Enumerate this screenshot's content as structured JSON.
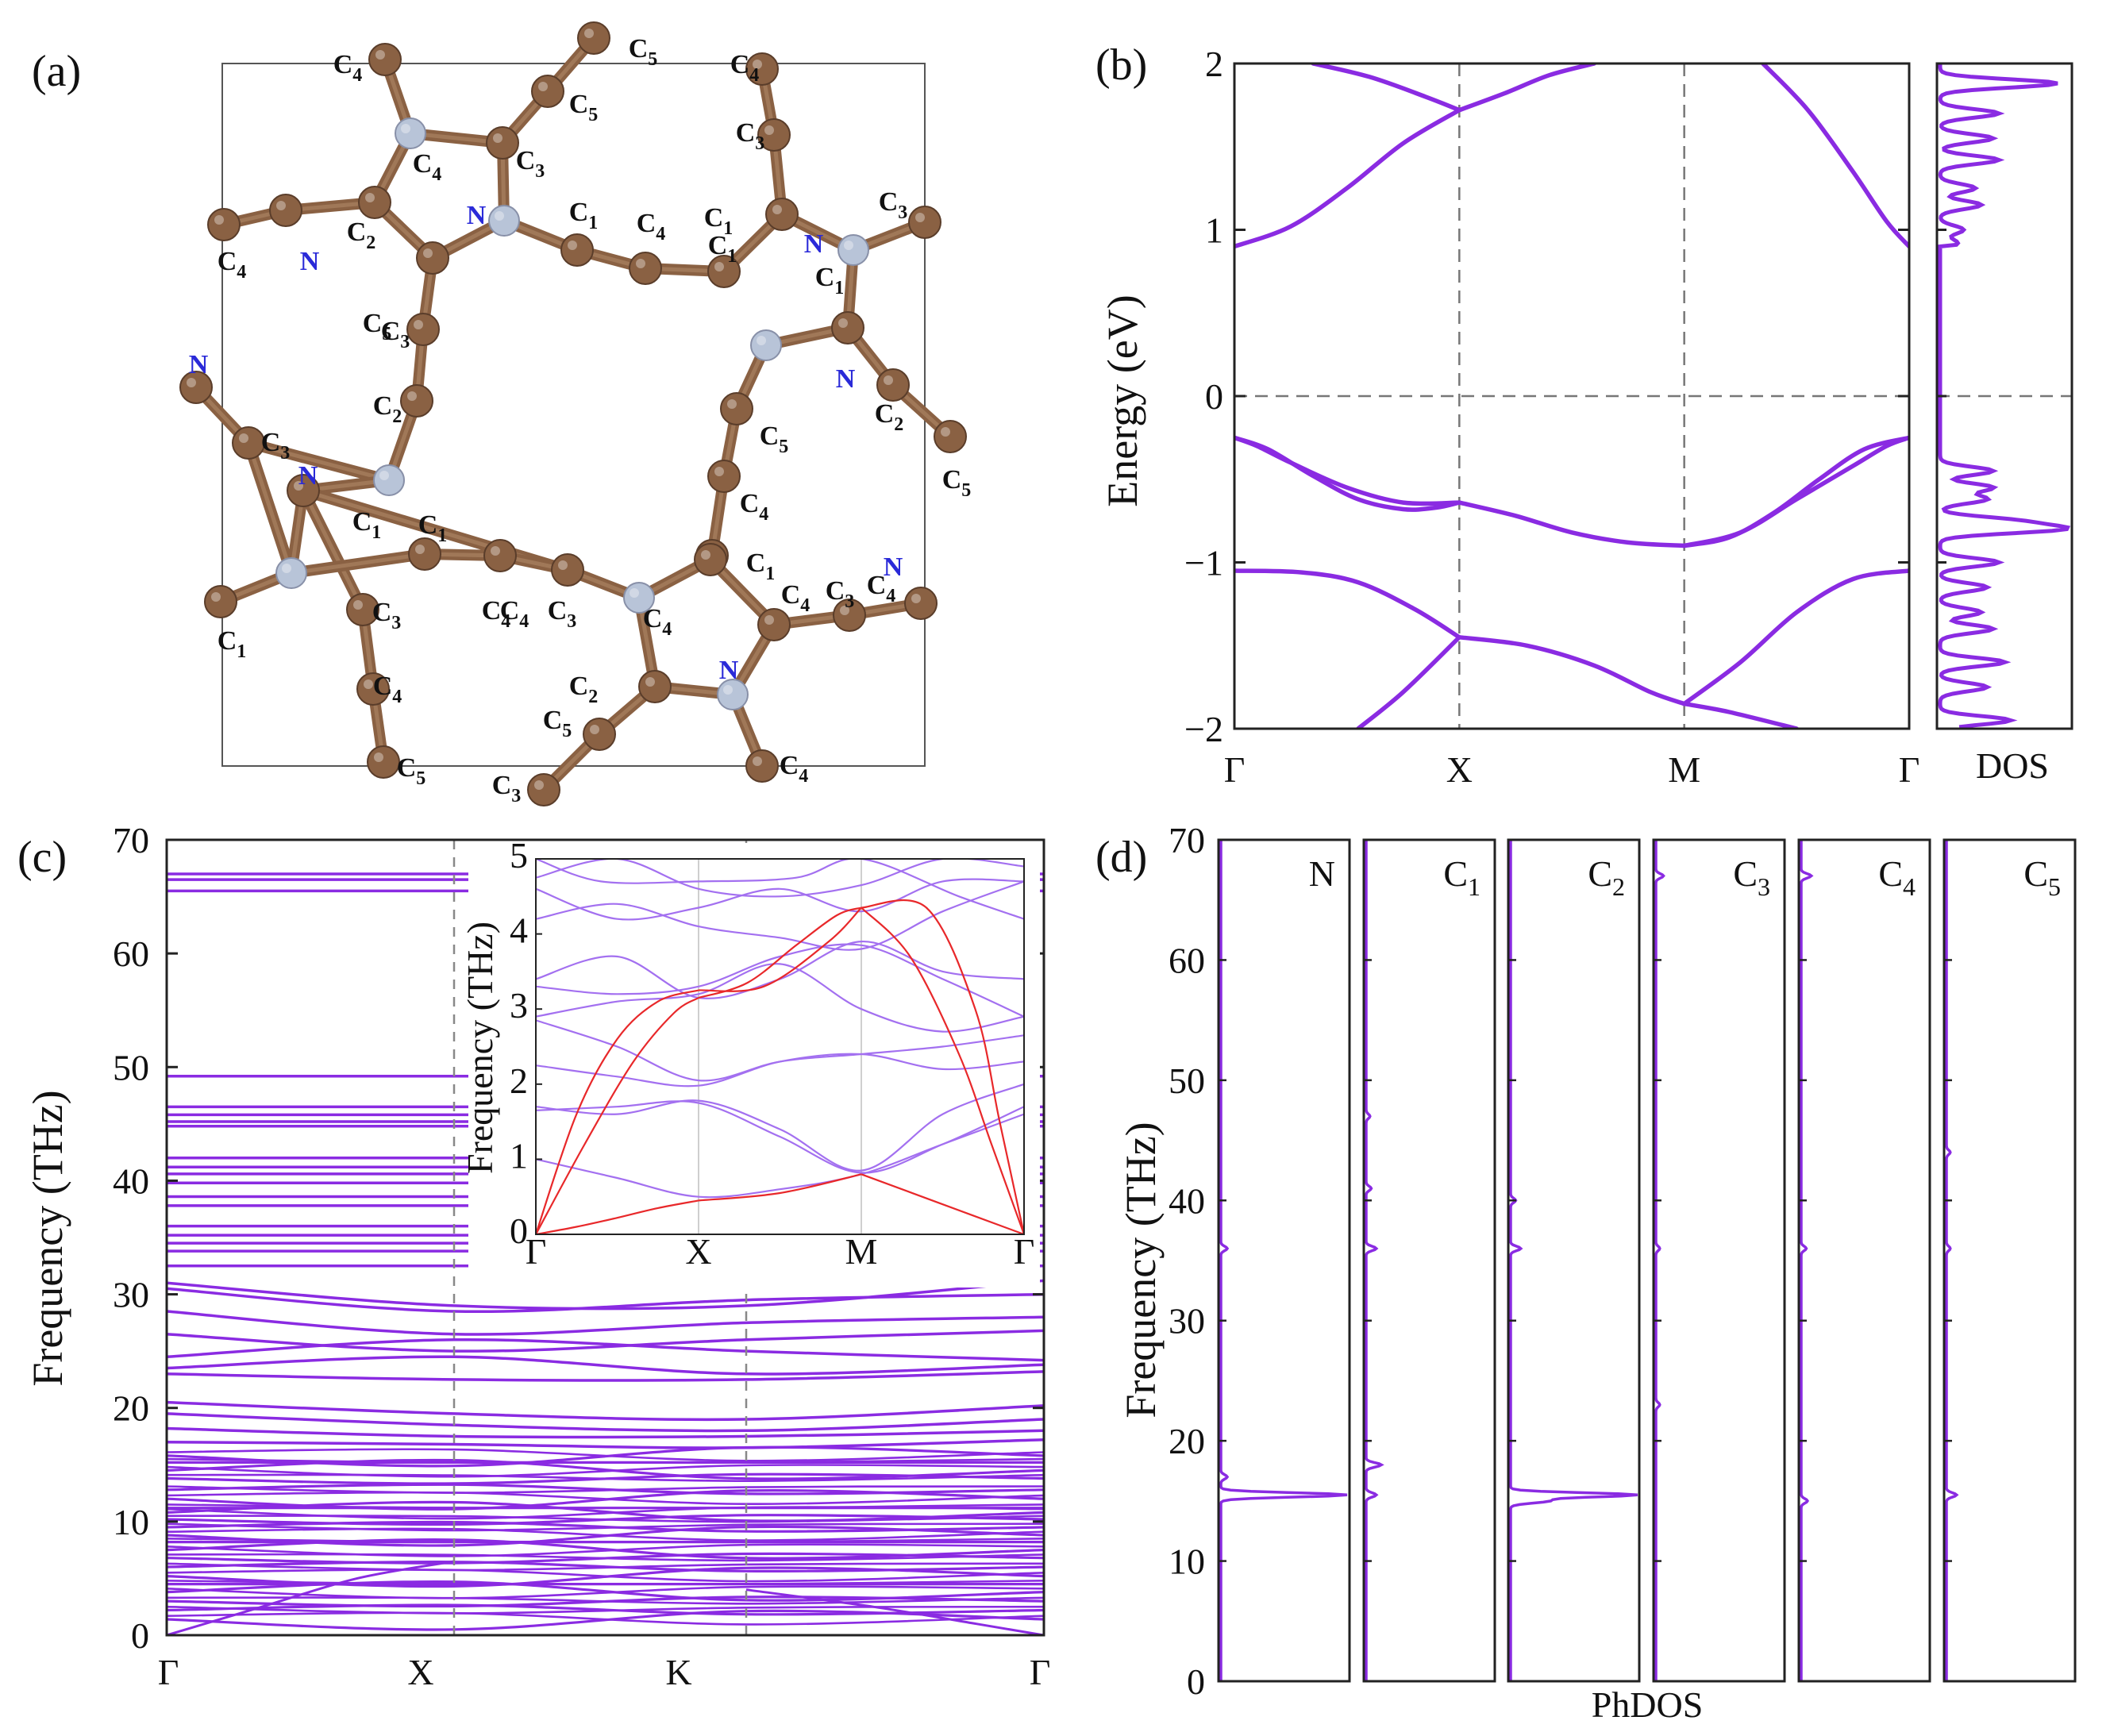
{
  "figure": {
    "colors": {
      "band": "#8a2be2",
      "acoustic": "#e8282a",
      "inset_band": "#a370f0",
      "carbon": "#8a6143",
      "nitrogen": "#b8c4d8",
      "n_label": "#2a2ad8",
      "grid": "#999999"
    }
  },
  "panel_a": {
    "label": "(a)",
    "atom_labels": [
      "C4",
      "C5",
      "C5",
      "C4",
      "C3",
      "N",
      "C2",
      "N",
      "C4",
      "C3",
      "C1",
      "C4",
      "C1",
      "C4",
      "C3",
      "C1",
      "C1",
      "C3",
      "N",
      "N",
      "C2",
      "C5",
      "C5",
      "C4",
      "C4",
      "C5",
      "C2",
      "N",
      "C3",
      "N",
      "C1",
      "C1",
      "C1",
      "C3",
      "C4",
      "C4",
      "C3",
      "C4",
      "C1",
      "C3",
      "C4",
      "N",
      "C2",
      "N",
      "C5",
      "C3",
      "C4",
      "C5",
      "C4"
    ]
  },
  "chart_data": [
    {
      "id": "b-bands",
      "type": "line",
      "label": "(b)",
      "ylabel": "Energy (eV)",
      "ylim": [
        -2,
        2
      ],
      "yticks": [
        "2",
        "1",
        "0",
        "−1",
        "−2"
      ],
      "kpoints": [
        "Γ",
        "X",
        "M",
        "Γ"
      ],
      "kpos": [
        0,
        1,
        2,
        3
      ],
      "fermi_level": 0,
      "series": [
        {
          "name": "c1",
          "x": [
            0,
            0.25,
            0.5,
            0.75,
            1.0
          ],
          "y": [
            0.9,
            1.02,
            1.25,
            1.52,
            1.72
          ]
        },
        {
          "name": "c2",
          "x": [
            0.35,
            0.6,
            0.85,
            1.0
          ],
          "y": [
            2.0,
            1.92,
            1.8,
            1.72
          ]
        },
        {
          "name": "c3",
          "x": [
            1.0,
            1.2,
            1.4,
            1.6
          ],
          "y": [
            1.72,
            1.82,
            1.93,
            2.0
          ]
        },
        {
          "name": "c4",
          "x": [
            2.35,
            2.55,
            2.75,
            2.9,
            3.0
          ],
          "y": [
            2.0,
            1.72,
            1.35,
            1.05,
            0.9
          ]
        },
        {
          "name": "v1",
          "x": [
            0,
            0.1,
            0.25,
            0.5,
            0.75,
            1.0
          ],
          "y": [
            -0.25,
            -0.3,
            -0.4,
            -0.55,
            -0.64,
            -0.64
          ]
        },
        {
          "name": "v2",
          "x": [
            0,
            0.15,
            0.35,
            0.55,
            0.75,
            0.9,
            1.0
          ],
          "y": [
            -0.25,
            -0.32,
            -0.48,
            -0.62,
            -0.68,
            -0.67,
            -0.64
          ]
        },
        {
          "name": "v3",
          "x": [
            1.0,
            1.25,
            1.5,
            1.75,
            2.0
          ],
          "y": [
            -0.64,
            -0.72,
            -0.82,
            -0.88,
            -0.9
          ]
        },
        {
          "name": "v4",
          "x": [
            2.0,
            2.2,
            2.4,
            2.6,
            2.8,
            3.0
          ],
          "y": [
            -0.9,
            -0.85,
            -0.7,
            -0.5,
            -0.32,
            -0.25
          ]
        },
        {
          "name": "v5",
          "x": [
            2.0,
            2.25,
            2.5,
            2.75,
            2.9,
            3.0
          ],
          "y": [
            -0.9,
            -0.82,
            -0.62,
            -0.42,
            -0.3,
            -0.25
          ]
        },
        {
          "name": "v6",
          "x": [
            0,
            0.3,
            0.55,
            0.8,
            1.0
          ],
          "y": [
            -1.05,
            -1.06,
            -1.12,
            -1.28,
            -1.45
          ]
        },
        {
          "name": "v7",
          "x": [
            1.0,
            1.3,
            1.6,
            1.85,
            2.0
          ],
          "y": [
            -1.45,
            -1.5,
            -1.62,
            -1.78,
            -1.85
          ]
        },
        {
          "name": "v8",
          "x": [
            2.0,
            2.25,
            2.5,
            2.75,
            3.0
          ],
          "y": [
            -1.85,
            -1.6,
            -1.3,
            -1.1,
            -1.05
          ]
        },
        {
          "name": "v9",
          "x": [
            0.55,
            0.75,
            1.0
          ],
          "y": [
            -2.0,
            -1.78,
            -1.45
          ]
        },
        {
          "name": "v10",
          "x": [
            2.0,
            2.2,
            2.5
          ],
          "y": [
            -1.85,
            -1.9,
            -2.0
          ]
        }
      ]
    },
    {
      "id": "b-dos",
      "type": "line",
      "xlabel": "DOS",
      "ylim": [
        -2,
        2
      ],
      "peaks": [
        [
          1.88,
          1.0
        ],
        [
          1.7,
          0.5
        ],
        [
          1.55,
          0.45
        ],
        [
          1.42,
          0.5
        ],
        [
          1.25,
          0.3
        ],
        [
          1.15,
          0.35
        ],
        [
          1.0,
          0.2
        ],
        [
          0.92,
          0.15
        ],
        [
          -0.45,
          0.45
        ],
        [
          -0.55,
          0.45
        ],
        [
          -0.62,
          0.4
        ],
        [
          -0.75,
          0.6
        ],
        [
          -0.8,
          1.0
        ],
        [
          -1.0,
          0.5
        ],
        [
          -1.15,
          0.4
        ],
        [
          -1.3,
          0.35
        ],
        [
          -1.4,
          0.45
        ],
        [
          -1.6,
          0.55
        ],
        [
          -1.75,
          0.4
        ],
        [
          -1.95,
          0.6
        ]
      ]
    },
    {
      "id": "c-phonon",
      "type": "line",
      "label": "(c)",
      "ylabel": "Frequency (THz)",
      "ylim": [
        0,
        70
      ],
      "yticks": [
        "70",
        "60",
        "50",
        "40",
        "30",
        "20",
        "10",
        "0"
      ],
      "kpoints": [
        "Γ",
        "X",
        "K",
        "Γ"
      ],
      "high_freq_flat": [
        67.0,
        66.5,
        65.5,
        49.2,
        46.5,
        45.8,
        45.2,
        44.8,
        42.0,
        41.2,
        40.6,
        39.8,
        38.6,
        37.8,
        36.0,
        35.2,
        34.5,
        33.8,
        32.5
      ],
      "mid_bands": [
        [
          31.0,
          29.0,
          29.0,
          31.2
        ],
        [
          30.5,
          28.5,
          29.5,
          30.0
        ],
        [
          28.5,
          26.5,
          27.5,
          28.0
        ],
        [
          26.5,
          25.0,
          26.0,
          26.8
        ],
        [
          24.5,
          26.0,
          25.0,
          24.2
        ],
        [
          23.5,
          24.5,
          23.0,
          23.8
        ],
        [
          23.0,
          22.5,
          22.5,
          23.2
        ],
        [
          20.5,
          19.5,
          19.0,
          20.2
        ],
        [
          19.5,
          18.5,
          18.0,
          19.0
        ],
        [
          18.2,
          17.5,
          17.5,
          18.0
        ],
        [
          17.0,
          16.8,
          16.5,
          17.2
        ]
      ],
      "low_levels": [
        15.8,
        15.2,
        14.5,
        13.8,
        12.8,
        12.0,
        11.2,
        10.8,
        10.2,
        9.5,
        8.8,
        8.2,
        7.5,
        6.8,
        6.0,
        5.2,
        4.5,
        3.8,
        3.0,
        2.2,
        1.4
      ],
      "inset": {
        "ylabel": "Frequency (THz)",
        "ylim": [
          0,
          5
        ],
        "yticks": [
          "5",
          "4",
          "3",
          "2",
          "1",
          "0"
        ],
        "kpoints": [
          "Γ",
          "X",
          "M",
          "Γ"
        ],
        "acoustic": [
          {
            "x": [
              0,
              0.25,
              0.5,
              0.75,
              1.0
            ],
            "y": [
              0,
              0.1,
              0.22,
              0.35,
              0.45
            ]
          },
          {
            "x": [
              1.0,
              1.5,
              2.0
            ],
            "y": [
              0.45,
              0.55,
              0.8
            ]
          },
          {
            "x": [
              2.0,
              2.5,
              3.0
            ],
            "y": [
              0.8,
              0.4,
              0
            ]
          },
          {
            "x": [
              0,
              0.3,
              0.6,
              0.85,
              1.0
            ],
            "y": [
              0,
              1.2,
              2.3,
              2.95,
              3.15
            ]
          },
          {
            "x": [
              1.0,
              1.3,
              1.6,
              1.85,
              2.0
            ],
            "y": [
              3.15,
              3.35,
              3.85,
              4.25,
              4.35
            ]
          },
          {
            "x": [
              2.0,
              2.3,
              2.6,
              2.8,
              3.0
            ],
            "y": [
              4.35,
              3.7,
              2.4,
              1.2,
              0
            ]
          },
          {
            "x": [
              0,
              0.25,
              0.5,
              0.75,
              1.0
            ],
            "y": [
              0,
              1.6,
              2.6,
              3.1,
              3.25
            ]
          },
          {
            "x": [
              1.0,
              1.4,
              1.8,
              2.0
            ],
            "y": [
              3.25,
              3.3,
              3.9,
              4.35
            ]
          },
          {
            "x": [
              2.0,
              2.4,
              2.7,
              2.85,
              3.0
            ],
            "y": [
              4.35,
              4.35,
              3.0,
              1.5,
              0
            ]
          }
        ],
        "optical": [
          {
            "x": [
              0,
              0.5,
              1.0,
              1.5,
              2.0,
              2.5,
              3.0
            ],
            "y": [
              1.0,
              0.75,
              0.5,
              0.6,
              0.8,
              1.2,
              1.6
            ]
          },
          {
            "x": [
              0,
              0.5,
              1.0,
              1.5,
              2.0,
              2.5,
              3.0
            ],
            "y": [
              1.65,
              1.7,
              1.75,
              1.3,
              0.82,
              1.2,
              1.7
            ]
          },
          {
            "x": [
              0,
              0.5,
              1.0,
              1.5,
              2.0,
              2.5,
              3.0
            ],
            "y": [
              1.7,
              1.6,
              1.78,
              1.4,
              0.85,
              1.6,
              2.0
            ]
          },
          {
            "x": [
              0,
              0.5,
              1.0,
              1.5,
              2.0,
              2.5,
              3.0
            ],
            "y": [
              2.25,
              2.1,
              1.98,
              2.3,
              2.4,
              2.2,
              2.3
            ]
          },
          {
            "x": [
              0,
              0.5,
              1.0,
              1.5,
              2.0,
              2.5,
              3.0
            ],
            "y": [
              2.85,
              2.5,
              2.05,
              2.3,
              2.4,
              2.5,
              2.65
            ]
          },
          {
            "x": [
              0,
              0.5,
              1.0,
              1.5,
              2.0,
              2.5,
              3.0
            ],
            "y": [
              2.9,
              3.1,
              3.2,
              3.6,
              3.0,
              2.7,
              2.9
            ]
          },
          {
            "x": [
              0,
              0.5,
              1.0,
              1.5,
              2.0,
              2.5,
              3.0
            ],
            "y": [
              3.3,
              3.2,
              3.3,
              3.7,
              3.85,
              3.4,
              2.9
            ]
          },
          {
            "x": [
              0,
              0.5,
              1.0,
              1.5,
              2.0,
              2.5,
              3.0
            ],
            "y": [
              3.4,
              3.7,
              3.15,
              3.4,
              3.9,
              3.5,
              3.4
            ]
          },
          {
            "x": [
              0,
              0.5,
              1.0,
              1.5,
              2.0,
              2.5,
              3.0
            ],
            "y": [
              4.2,
              4.4,
              4.1,
              3.95,
              3.8,
              4.3,
              4.7
            ]
          },
          {
            "x": [
              0,
              0.5,
              1.0,
              1.5,
              2.0,
              2.5,
              3.0
            ],
            "y": [
              4.6,
              4.2,
              4.35,
              4.6,
              4.3,
              4.7,
              4.7
            ]
          },
          {
            "x": [
              0,
              0.5,
              1.0,
              1.5,
              2.0,
              2.5,
              3.0
            ],
            "y": [
              4.75,
              5.0,
              4.6,
              4.5,
              4.65,
              5.0,
              4.9
            ]
          },
          {
            "x": [
              0,
              0.4,
              1.0,
              1.6,
              2.0,
              2.6,
              3.0
            ],
            "y": [
              5.0,
              4.7,
              4.7,
              4.75,
              5.0,
              4.5,
              4.2
            ]
          }
        ]
      }
    },
    {
      "id": "d-phdos",
      "type": "line",
      "label": "(d)",
      "ylabel": "Frequency (THz)",
      "xlabel": "PhDOS",
      "ylim": [
        0,
        70
      ],
      "yticks": [
        "70",
        "60",
        "50",
        "40",
        "30",
        "20",
        "10",
        "0"
      ],
      "panels": [
        {
          "name": "N",
          "sub": "",
          "peaks": [
            [
              15.5,
              1.0
            ],
            [
              36,
              0.05
            ],
            [
              17,
              0.05
            ]
          ]
        },
        {
          "name": "C",
          "sub": "1",
          "peaks": [
            [
              18,
              0.12
            ],
            [
              15.5,
              0.08
            ],
            [
              36,
              0.08
            ],
            [
              41,
              0.04
            ],
            [
              47,
              0.03
            ]
          ]
        },
        {
          "name": "C",
          "sub": "2",
          "peaks": [
            [
              15.5,
              1.0
            ],
            [
              15,
              0.3
            ],
            [
              36,
              0.08
            ],
            [
              40,
              0.04
            ]
          ]
        },
        {
          "name": "C",
          "sub": "3",
          "peaks": [
            [
              67,
              0.06
            ],
            [
              36,
              0.03
            ],
            [
              23,
              0.03
            ]
          ]
        },
        {
          "name": "C",
          "sub": "4",
          "peaks": [
            [
              67,
              0.08
            ],
            [
              15,
              0.05
            ],
            [
              36,
              0.04
            ]
          ]
        },
        {
          "name": "C",
          "sub": "5",
          "peaks": [
            [
              15.5,
              0.08
            ],
            [
              36,
              0.03
            ],
            [
              44,
              0.03
            ]
          ]
        }
      ]
    }
  ]
}
